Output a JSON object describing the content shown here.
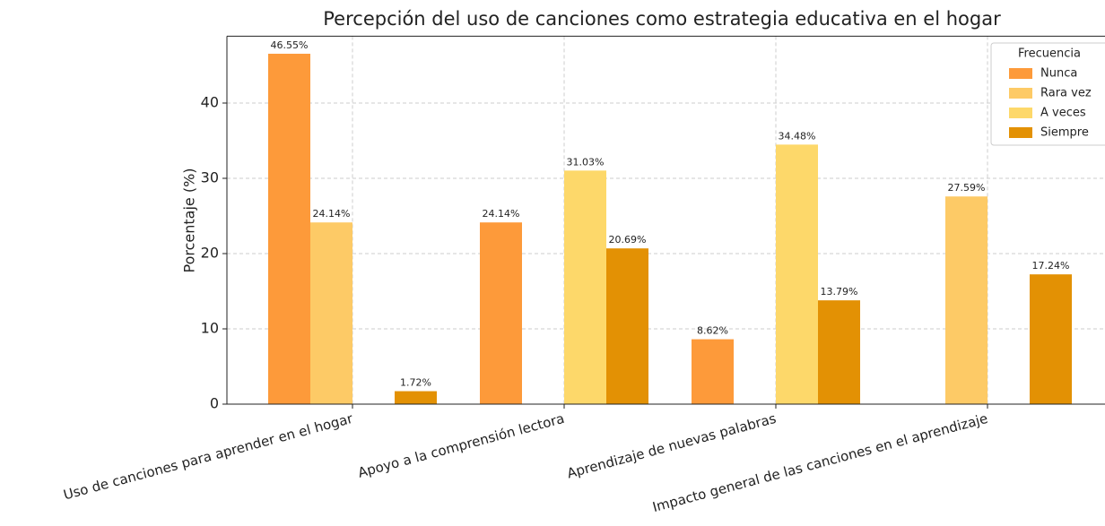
{
  "chart_data": {
    "type": "bar",
    "title": "Percepción del uso de canciones como estrategia educativa en el hogar",
    "ylabel": "Porcentaje (%)",
    "categories": [
      "Uso de canciones para aprender en el hogar",
      "Apoyo a la comprensión lectora",
      "Aprendizaje de nuevas palabras",
      "Impacto general de las canciones en el aprendizaje"
    ],
    "series": [
      {
        "name": "Nunca",
        "color": "#fd9a3a",
        "values": [
          46.55,
          24.14,
          8.62,
          null
        ],
        "value_labels": [
          "46.55%",
          "24.14%",
          "8.62%",
          null
        ]
      },
      {
        "name": "Rara vez",
        "color": "#fdca66",
        "values": [
          24.14,
          null,
          null,
          27.59
        ],
        "value_labels": [
          "24.14%",
          null,
          null,
          "27.59%"
        ]
      },
      {
        "name": "A veces",
        "color": "#fdd86a",
        "values": [
          null,
          31.03,
          34.48,
          null
        ],
        "value_labels": [
          null,
          "31.03%",
          "34.48%",
          null
        ]
      },
      {
        "name": "Siempre",
        "color": "#e39104",
        "values": [
          1.72,
          20.69,
          13.79,
          17.24
        ],
        "value_labels": [
          "1.72%",
          "20.69%",
          "13.79%",
          "17.24%"
        ]
      }
    ],
    "legend_title": "Frecuencia",
    "legend": "upper right",
    "ylim": [
      0,
      48.88
    ],
    "yticks": [
      0,
      10,
      20,
      30,
      40
    ],
    "grid": true
  }
}
